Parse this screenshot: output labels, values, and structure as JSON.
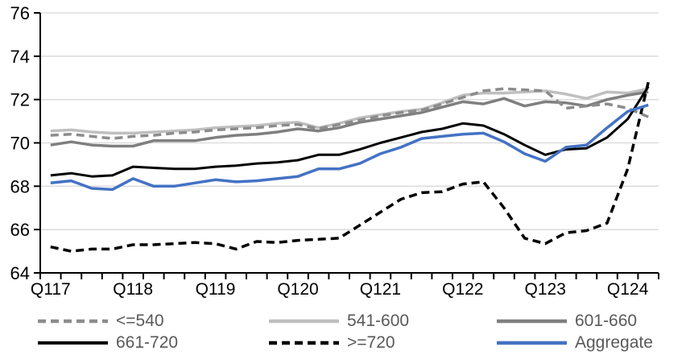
{
  "chart_data": {
    "type": "line",
    "title": "",
    "categories": [
      "Q1 2017",
      "Q2 2017",
      "Q3 2017",
      "Q4 2017",
      "Q1 2018",
      "Q2 2018",
      "Q3 2018",
      "Q4 2018",
      "Q1 2019",
      "Q2 2019",
      "Q3 2019",
      "Q4 2019",
      "Q1 2020",
      "Q2 2020",
      "Q3 2020",
      "Q4 2020",
      "Q1 2021",
      "Q2 2021",
      "Q3 2021",
      "Q4 2021",
      "Q1 2022",
      "Q2 2022",
      "Q3 2022",
      "Q4 2022",
      "Q1 2023",
      "Q2 2023",
      "Q3 2023",
      "Q4 2023",
      "Q1 2024",
      "Q2 2024"
    ],
    "x_tick_labels": [
      "Q117",
      "Q118",
      "Q119",
      "Q120",
      "Q121",
      "Q122",
      "Q123",
      "Q124"
    ],
    "y_axis": {
      "min": 64,
      "max": 76,
      "tick_step": 2,
      "ticks": [
        64,
        66,
        68,
        70,
        72,
        74,
        76
      ]
    },
    "grid": true,
    "legend_position": "bottom",
    "colors": {
      "grid": "#D9D9D9",
      "axis": "#000000",
      "axis_label": "#000000",
      "legend_text": "#595959",
      "background": "#FFFFFF"
    },
    "series": [
      {
        "name": "<=540",
        "color": "#8C8C8C",
        "dash": "dashed",
        "width": 3.5,
        "values": [
          70.35,
          70.4,
          70.3,
          70.2,
          70.3,
          70.35,
          70.45,
          70.5,
          70.6,
          70.65,
          70.7,
          70.8,
          70.85,
          70.65,
          70.85,
          71.05,
          71.25,
          71.4,
          71.5,
          71.8,
          72.1,
          72.4,
          72.5,
          72.45,
          72.4,
          71.6,
          71.7,
          71.8,
          71.6,
          71.2
        ]
      },
      {
        "name": "541-600",
        "color": "#BFBFBF",
        "dash": "solid",
        "width": 3.5,
        "values": [
          70.55,
          70.6,
          70.5,
          70.45,
          70.45,
          70.5,
          70.55,
          70.6,
          70.7,
          70.75,
          70.8,
          70.9,
          70.95,
          70.7,
          70.9,
          71.15,
          71.3,
          71.45,
          71.55,
          71.85,
          72.2,
          72.3,
          72.3,
          72.35,
          72.4,
          72.25,
          72.05,
          72.35,
          72.3,
          72.5
        ]
      },
      {
        "name": "601-660",
        "color": "#7F7F7F",
        "dash": "solid",
        "width": 3.5,
        "values": [
          69.9,
          70.05,
          69.9,
          69.85,
          69.85,
          70.1,
          70.1,
          70.1,
          70.25,
          70.35,
          70.4,
          70.5,
          70.65,
          70.55,
          70.7,
          70.95,
          71.1,
          71.25,
          71.4,
          71.65,
          71.9,
          71.8,
          72.05,
          71.7,
          71.9,
          71.85,
          71.7,
          72.0,
          72.2,
          72.35
        ]
      },
      {
        "name": "661-720",
        "color": "#000000",
        "dash": "solid",
        "width": 3,
        "values": [
          68.5,
          68.6,
          68.45,
          68.5,
          68.9,
          68.85,
          68.8,
          68.8,
          68.9,
          68.95,
          69.05,
          69.1,
          69.2,
          69.45,
          69.45,
          69.7,
          70.0,
          70.25,
          70.5,
          70.65,
          70.9,
          70.8,
          70.4,
          69.9,
          69.45,
          69.7,
          69.75,
          70.25,
          71.1,
          72.6
        ]
      },
      {
        "name": ">=720",
        "color": "#000000",
        "dash": "dashed",
        "width": 3.5,
        "values": [
          65.2,
          65.0,
          65.1,
          65.1,
          65.3,
          65.3,
          65.35,
          65.4,
          65.35,
          65.1,
          65.45,
          65.4,
          65.5,
          65.55,
          65.6,
          66.2,
          66.8,
          67.4,
          67.7,
          67.75,
          68.1,
          68.2,
          67.0,
          65.6,
          65.35,
          65.85,
          65.95,
          66.3,
          68.8,
          72.8
        ]
      },
      {
        "name": "Aggregate",
        "color": "#4472C4",
        "dash": "solid",
        "width": 3.5,
        "values": [
          68.15,
          68.25,
          67.9,
          67.85,
          68.35,
          68.0,
          68.0,
          68.15,
          68.3,
          68.2,
          68.25,
          68.35,
          68.45,
          68.8,
          68.8,
          69.05,
          69.5,
          69.8,
          70.2,
          70.3,
          70.4,
          70.45,
          70.05,
          69.5,
          69.15,
          69.8,
          69.9,
          70.7,
          71.45,
          71.75
        ]
      }
    ]
  }
}
